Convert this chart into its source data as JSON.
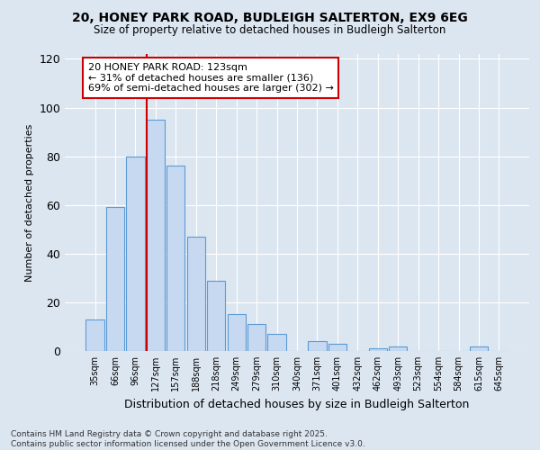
{
  "title": "20, HONEY PARK ROAD, BUDLEIGH SALTERTON, EX9 6EG",
  "subtitle": "Size of property relative to detached houses in Budleigh Salterton",
  "xlabel": "Distribution of detached houses by size in Budleigh Salterton",
  "ylabel": "Number of detached properties",
  "footer1": "Contains HM Land Registry data © Crown copyright and database right 2025.",
  "footer2": "Contains public sector information licensed under the Open Government Licence v3.0.",
  "categories": [
    "35sqm",
    "66sqm",
    "96sqm",
    "127sqm",
    "157sqm",
    "188sqm",
    "218sqm",
    "249sqm",
    "279sqm",
    "310sqm",
    "340sqm",
    "371sqm",
    "401sqm",
    "432sqm",
    "462sqm",
    "493sqm",
    "523sqm",
    "554sqm",
    "584sqm",
    "615sqm",
    "645sqm"
  ],
  "values": [
    13,
    59,
    80,
    95,
    76,
    47,
    29,
    15,
    11,
    7,
    0,
    4,
    3,
    0,
    1,
    2,
    0,
    0,
    0,
    2,
    0
  ],
  "bar_color": "#c6d9f0",
  "bar_edge_color": "#5b9bd5",
  "background_color": "#dce6f1",
  "annotation_text": "20 HONEY PARK ROAD: 123sqm\n← 31% of detached houses are smaller (136)\n69% of semi-detached houses are larger (302) →",
  "vline_color": "#cc0000",
  "annotation_box_color": "#ffffff",
  "annotation_box_edge": "#cc0000",
  "ylim": [
    0,
    122
  ],
  "yticks": [
    0,
    20,
    40,
    60,
    80,
    100,
    120
  ]
}
